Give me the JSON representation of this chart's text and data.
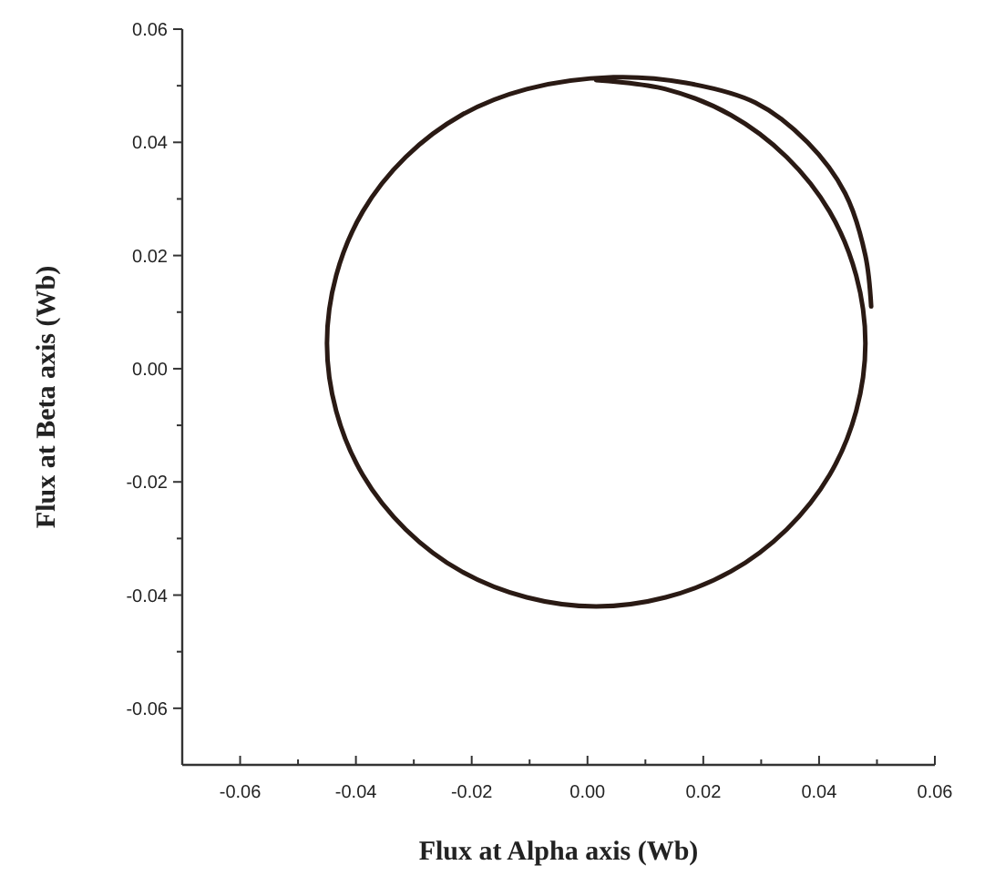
{
  "chart_data": {
    "type": "line",
    "xlabel": "Flux at Alpha axis (Wb)",
    "ylabel": "Flux at Beta axis (Wb)",
    "xlim": [
      -0.07,
      0.06
    ],
    "ylim": [
      -0.07,
      0.06
    ],
    "xticks": [
      {
        "value": -0.06,
        "label": "-0.06"
      },
      {
        "value": -0.05,
        "label": null
      },
      {
        "value": -0.04,
        "label": "-0.04"
      },
      {
        "value": -0.03,
        "label": null
      },
      {
        "value": -0.02,
        "label": "-0.02"
      },
      {
        "value": -0.01,
        "label": null
      },
      {
        "value": 0,
        "label": "0.00"
      },
      {
        "value": 0.01,
        "label": null
      },
      {
        "value": 0.02,
        "label": "0.02"
      },
      {
        "value": 0.03,
        "label": null
      },
      {
        "value": 0.04,
        "label": "0.04"
      },
      {
        "value": 0.05,
        "label": null
      },
      {
        "value": 0.06,
        "label": "0.06"
      }
    ],
    "yticks": [
      {
        "value": -0.06,
        "label": "-0.06"
      },
      {
        "value": -0.05,
        "label": null
      },
      {
        "value": -0.04,
        "label": "-0.04"
      },
      {
        "value": -0.03,
        "label": null
      },
      {
        "value": -0.02,
        "label": "-0.02"
      },
      {
        "value": -0.01,
        "label": null
      },
      {
        "value": 0,
        "label": "0.00"
      },
      {
        "value": 0.01,
        "label": null
      },
      {
        "value": 0.02,
        "label": "0.02"
      },
      {
        "value": 0.03,
        "label": null
      },
      {
        "value": 0.04,
        "label": "0.04"
      },
      {
        "value": 0.05,
        "label": null
      },
      {
        "value": 0.06,
        "label": "0.06"
      }
    ],
    "grid": false,
    "marker": "none",
    "line_style": "solid",
    "series": [
      {
        "color": "#2a1a14",
        "x": [
          0.049,
          0.048,
          0.0445,
          0.038,
          0.029,
          0.017,
          0.0045,
          -0.0105,
          -0.0218,
          -0.0314,
          -0.0388,
          -0.0434,
          -0.045,
          -0.0434,
          -0.0388,
          -0.0314,
          -0.0218,
          -0.0105,
          0.0015,
          0.0135,
          0.0248,
          0.0344,
          0.0418,
          0.0464,
          0.048,
          0.0464,
          0.0418,
          0.0344,
          0.0248,
          0.0135,
          0.0015
        ],
        "values": [
          0.011,
          0.02,
          0.031,
          0.04,
          0.047,
          0.0505,
          0.0515,
          0.0494,
          0.0448,
          0.0374,
          0.0278,
          0.0165,
          0.0045,
          -0.0075,
          -0.0188,
          -0.0284,
          -0.0358,
          -0.0404,
          -0.042,
          -0.0404,
          -0.0358,
          -0.0284,
          -0.0188,
          -0.0075,
          0.0045,
          0.0165,
          0.0278,
          0.0374,
          0.0448,
          0.0494,
          0.051
        ]
      }
    ]
  }
}
